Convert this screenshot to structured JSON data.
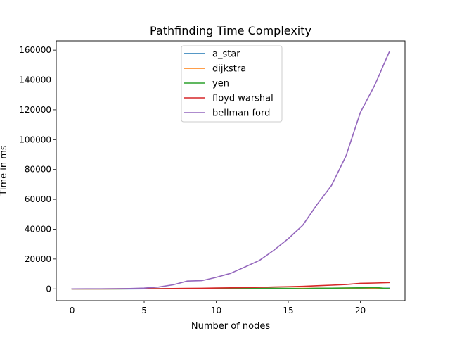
{
  "chart_data": {
    "type": "line",
    "title": "Pathfinding Time Complexity",
    "xlabel": "Number of nodes",
    "ylabel": "Time in ms",
    "xlim": [
      -1.1,
      23.1
    ],
    "ylim": [
      -7900,
      166200
    ],
    "xticks": [
      0,
      5,
      10,
      15,
      20
    ],
    "yticks": [
      0,
      20000,
      40000,
      60000,
      80000,
      100000,
      120000,
      140000,
      160000
    ],
    "grid": false,
    "legend_position": "top-center",
    "x": [
      0,
      1,
      2,
      3,
      4,
      5,
      6,
      7,
      8,
      9,
      10,
      11,
      12,
      13,
      14,
      15,
      16,
      17,
      18,
      19,
      20,
      21,
      22
    ],
    "series": [
      {
        "name": "a_star",
        "color": "#1f77b4",
        "values": [
          0,
          0,
          0,
          0,
          0,
          10,
          20,
          30,
          50,
          60,
          80,
          100,
          120,
          150,
          180,
          200,
          230,
          260,
          300,
          330,
          360,
          400,
          440
        ]
      },
      {
        "name": "dijkstra",
        "color": "#ff7f0e",
        "values": [
          0,
          0,
          0,
          0,
          10,
          20,
          30,
          50,
          80,
          100,
          120,
          150,
          180,
          220,
          260,
          300,
          340,
          390,
          440,
          490,
          540,
          600,
          150
        ]
      },
      {
        "name": "yen",
        "color": "#2ca02c",
        "values": [
          0,
          0,
          0,
          0,
          10,
          20,
          40,
          80,
          150,
          200,
          250,
          300,
          320,
          300,
          400,
          300,
          100,
          400,
          450,
          600,
          700,
          900,
          100
        ]
      },
      {
        "name": "floyd warshal",
        "color": "#d62728",
        "values": [
          0,
          0,
          0,
          10,
          30,
          60,
          120,
          200,
          350,
          400,
          550,
          700,
          850,
          1000,
          1250,
          1450,
          1700,
          2100,
          2500,
          2900,
          3700,
          3900,
          4200
        ]
      },
      {
        "name": "bellman ford",
        "color": "#9467bd",
        "values": [
          0,
          10,
          30,
          80,
          200,
          500,
          1200,
          2700,
          5200,
          5500,
          7700,
          10400,
          14700,
          19100,
          25900,
          33600,
          42600,
          56600,
          69300,
          89000,
          118200,
          136500,
          158700
        ]
      }
    ]
  }
}
